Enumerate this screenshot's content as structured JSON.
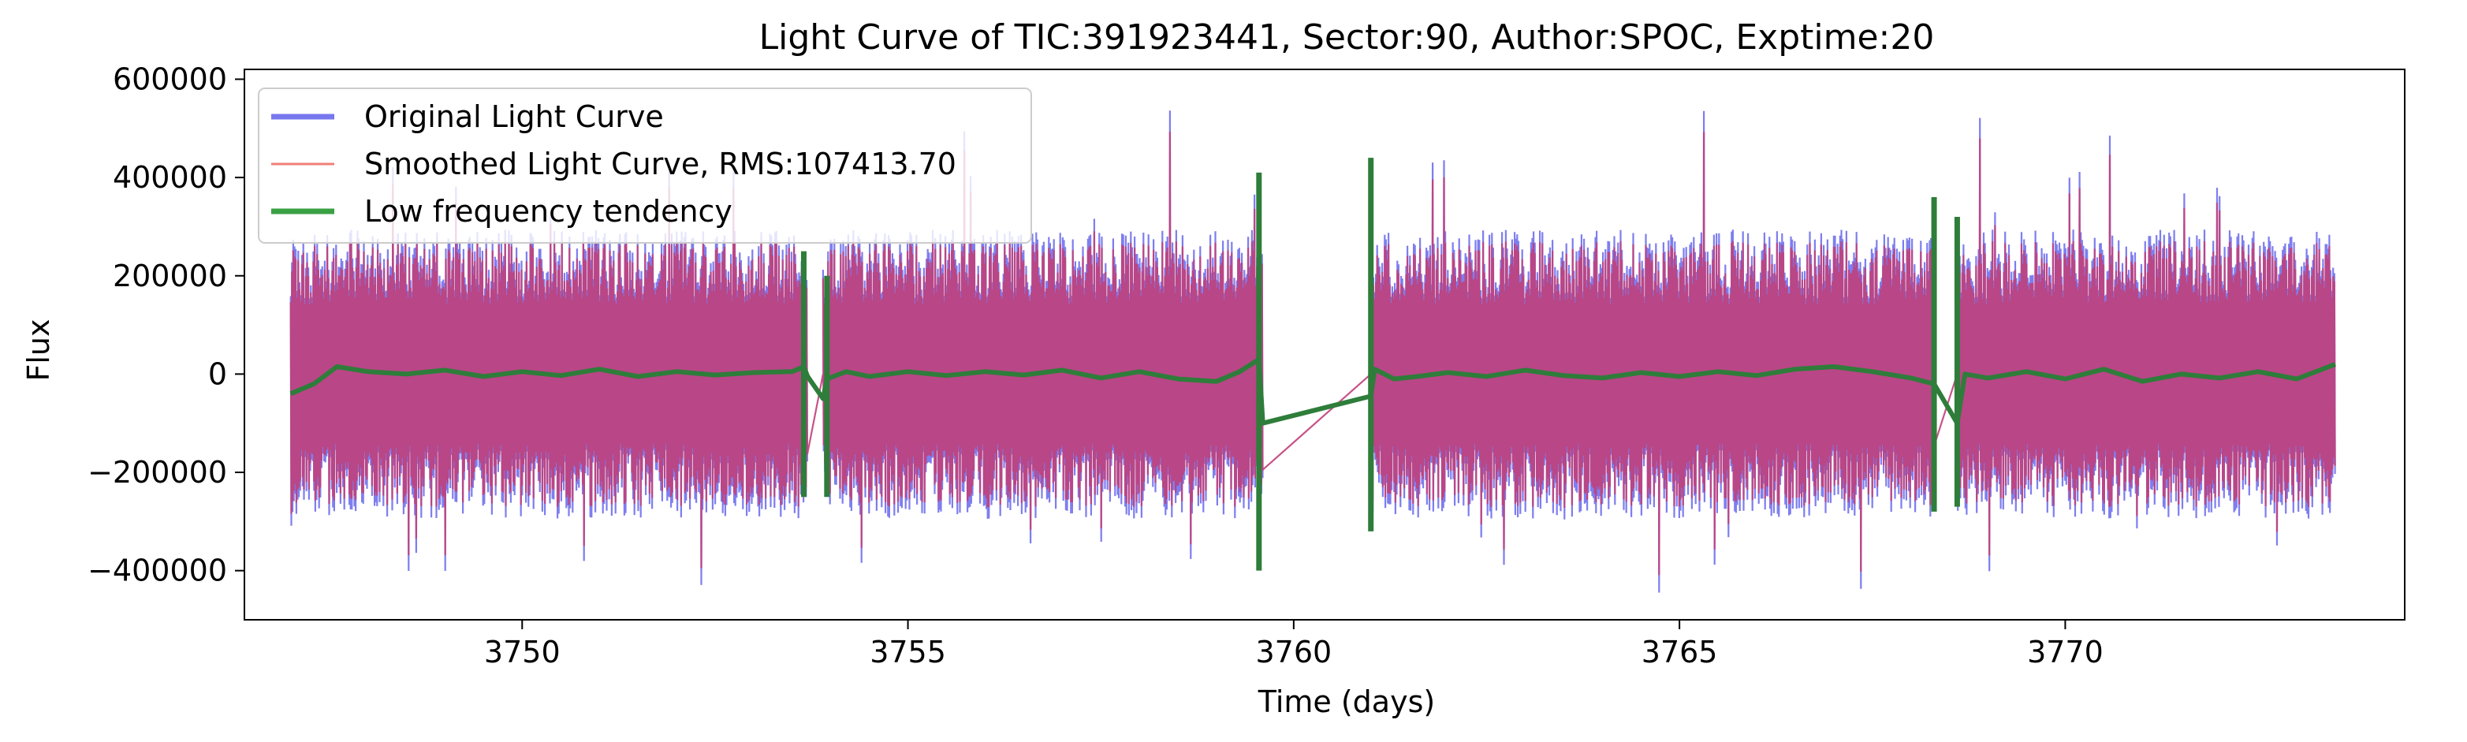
{
  "chart_data": {
    "type": "line",
    "title": "Light Curve of TIC:391923441, Sector:90, Author:SPOC, Exptime:20",
    "xlabel": "Time (days)",
    "ylabel": "Flux",
    "xlim": [
      3746.4,
      3774.4
    ],
    "ylim": [
      -500000,
      620000
    ],
    "xticks": [
      3750,
      3755,
      3760,
      3765,
      3770
    ],
    "xtick_labels": [
      "3750",
      "3755",
      "3760",
      "3765",
      "3770"
    ],
    "yticks": [
      -400000,
      -200000,
      0,
      200000,
      400000,
      600000
    ],
    "ytick_labels": [
      "−400000",
      "−200000",
      "0",
      "200000",
      "400000",
      "600000"
    ],
    "grid": false,
    "legend_position": "upper-left",
    "data_segments": [
      [
        3747.0,
        3753.7
      ],
      [
        3753.9,
        3759.6
      ],
      [
        3761.0,
        3768.3
      ],
      [
        3768.6,
        3773.5
      ]
    ],
    "flux_envelope": {
      "typical_upper": 280000,
      "typical_lower": -280000,
      "max_peak": 560000,
      "min_trough": -450000
    },
    "series": [
      {
        "name": "Original Light Curve",
        "color": "#7777ee",
        "note": "dense 20 s cadence flux, oscillating roughly between -300000 and 300000"
      },
      {
        "name": "Smoothed Light Curve, RMS:107413.70",
        "color": "#f07f78"
      },
      {
        "name": "Low frequency tendency",
        "color": "#2e7d3a",
        "x": [
          3747.0,
          3747.3,
          3747.6,
          3748.0,
          3748.5,
          3749.0,
          3749.5,
          3750.0,
          3750.5,
          3751.0,
          3751.5,
          3752.0,
          3752.5,
          3753.0,
          3753.5,
          3753.65,
          3753.7,
          3753.9,
          3753.95,
          3754.2,
          3754.5,
          3755.0,
          3755.5,
          3756.0,
          3756.5,
          3757.0,
          3757.5,
          3758.0,
          3758.5,
          3759.0,
          3759.3,
          3759.55,
          3759.6,
          3761.0,
          3761.05,
          3761.3,
          3761.6,
          3762.0,
          3762.5,
          3763.0,
          3763.5,
          3764.0,
          3764.5,
          3765.0,
          3765.5,
          3766.0,
          3766.5,
          3767.0,
          3767.5,
          3768.0,
          3768.3,
          3768.6,
          3768.7,
          3769.0,
          3769.5,
          3770.0,
          3770.5,
          3771.0,
          3771.5,
          3772.0,
          3772.5,
          3773.0,
          3773.5
        ],
        "y": [
          -40000,
          -20000,
          15000,
          5000,
          0,
          8000,
          -5000,
          5000,
          -3000,
          10000,
          -5000,
          5000,
          -2000,
          3000,
          5000,
          15000,
          -5000,
          -50000,
          -10000,
          5000,
          -5000,
          5000,
          -3000,
          5000,
          -2000,
          8000,
          -8000,
          5000,
          -10000,
          -15000,
          5000,
          30000,
          -100000,
          -45000,
          10000,
          -10000,
          -5000,
          3000,
          -5000,
          8000,
          -3000,
          -8000,
          3000,
          -5000,
          5000,
          -3000,
          10000,
          15000,
          5000,
          -8000,
          -20000,
          -100000,
          0,
          -8000,
          5000,
          -10000,
          10000,
          -15000,
          0,
          -8000,
          5000,
          -10000,
          20000
        ]
      }
    ]
  }
}
